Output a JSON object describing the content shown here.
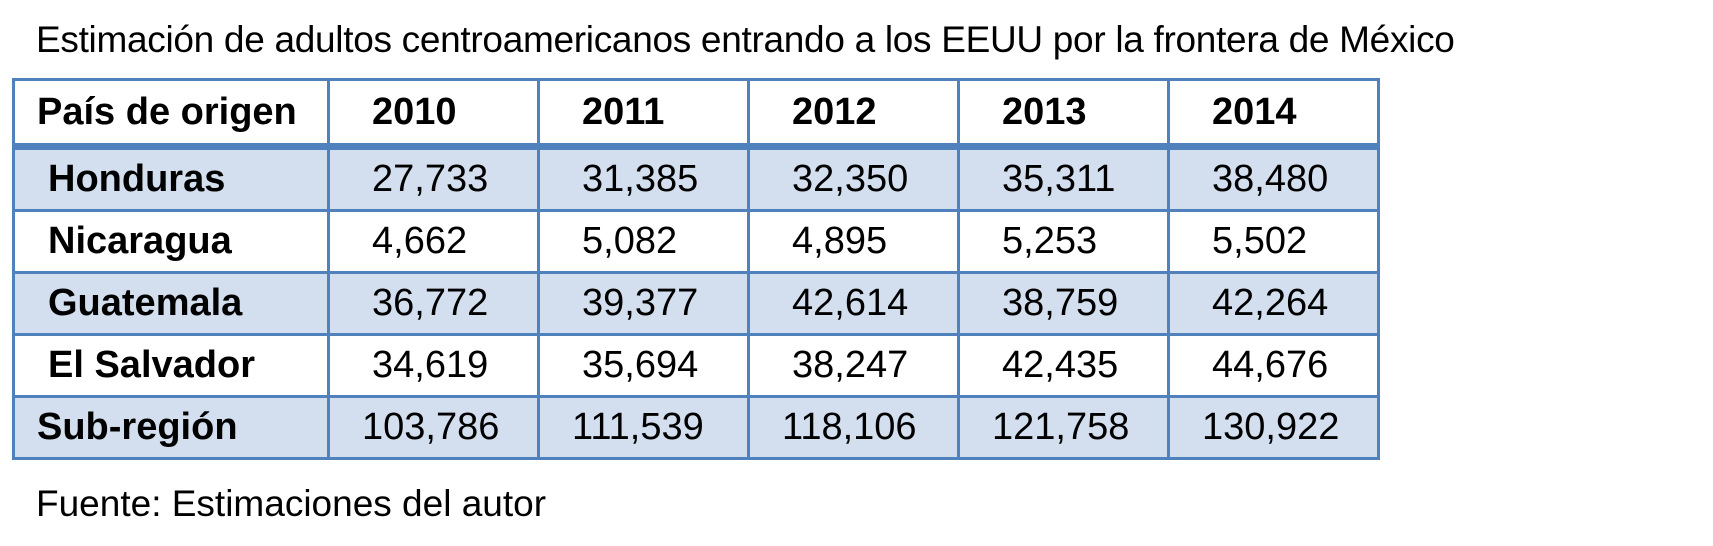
{
  "title": "Estimación de adultos centroamericanos entrando a los EEUU por la frontera de México",
  "table": {
    "header": {
      "country_label": "País de origen",
      "years": [
        "2010",
        "2011",
        "2012",
        "2013",
        "2014"
      ]
    },
    "rows": [
      {
        "country": "Honduras",
        "values": [
          "27,733",
          "31,385",
          "32,350",
          "35,311",
          "38,480"
        ]
      },
      {
        "country": "Nicaragua",
        "values": [
          "4,662",
          "5,082",
          "4,895",
          "5,253",
          "5,502"
        ]
      },
      {
        "country": "Guatemala",
        "values": [
          "36,772",
          "39,377",
          "42,614",
          "38,759",
          "42,264"
        ]
      },
      {
        "country": "El Salvador",
        "values": [
          "34,619",
          "35,694",
          "38,247",
          "42,435",
          "44,676"
        ]
      }
    ],
    "total": {
      "country": "Sub-región",
      "values": [
        "103,786",
        "111,539",
        "118,106",
        "121,758",
        "130,922"
      ]
    }
  },
  "source": "Fuente: Estimaciones del autor",
  "colors": {
    "border": "#4f81bd",
    "shaded_row": "#d3dfee"
  }
}
